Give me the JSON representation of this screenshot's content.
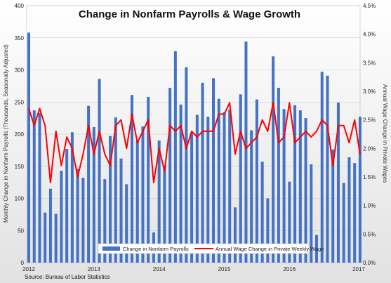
{
  "chart_data": {
    "type": "bar+line",
    "title": "Change in Nonfarm Payrolls & Wage Growth",
    "ylabel": "Monthly Change in Nonfarm Payrolls (Thousands, Seasonally Adjusted)",
    "y2label": "Annual Wage Change in Private Wages",
    "source": "Source: Bureau of Labor Statistics",
    "ylim": [
      0,
      400
    ],
    "y2lim": [
      0,
      4.5
    ],
    "y_ticks": [
      "0",
      "50",
      "100",
      "150",
      "200",
      "250",
      "300",
      "350",
      "400"
    ],
    "y2_ticks": [
      "0.0%",
      "0.5%",
      "1.0%",
      "1.5%",
      "2.0%",
      "2.5%",
      "3.0%",
      "3.5%",
      "4.0%",
      "4.5%"
    ],
    "x_ticks": [
      "2012",
      "2013",
      "2014",
      "2015",
      "2016",
      "2017"
    ],
    "grid": true,
    "legend": "bottom-center",
    "colors": {
      "bars": "#4472C4",
      "line": "#FF0000"
    },
    "series": [
      {
        "name": "Change in Nonfarm Payrolls",
        "type": "bar",
        "values": [
          358,
          237,
          233,
          78,
          115,
          76,
          143,
          177,
          203,
          146,
          132,
          244,
          211,
          286,
          130,
          197,
          226,
          162,
          122,
          261,
          190,
          212,
          258,
          47,
          190,
          151,
          272,
          329,
          246,
          304,
          202,
          230,
          280,
          227,
          287,
          255,
          234,
          238,
          86,
          262,
          344,
          206,
          254,
          157,
          100,
          321,
          272,
          239,
          126,
          245,
          237,
          225,
          153,
          43,
          297,
          291,
          176,
          249,
          124,
          164,
          155,
          227
        ],
        "x": [
          "2012-01",
          "2012-02",
          "2012-03",
          "2012-04",
          "2012-05",
          "2012-06",
          "2012-07",
          "2012-08",
          "2012-09",
          "2012-10",
          "2012-11",
          "2012-12",
          "2013-01",
          "2013-02",
          "2013-03",
          "2013-04",
          "2013-05",
          "2013-06",
          "2013-07",
          "2013-08",
          "2013-09",
          "2013-10",
          "2013-11",
          "2013-12",
          "2014-01",
          "2014-02",
          "2014-03",
          "2014-04",
          "2014-05",
          "2014-06",
          "2014-07",
          "2014-08",
          "2014-09",
          "2014-10",
          "2014-11",
          "2014-12",
          "2015-01",
          "2015-02",
          "2015-03",
          "2015-04",
          "2015-05",
          "2015-06",
          "2015-07",
          "2015-08",
          "2015-09",
          "2015-10",
          "2015-11",
          "2015-12",
          "2016-01",
          "2016-02",
          "2016-03",
          "2016-04",
          "2016-05",
          "2016-06",
          "2016-07",
          "2016-08",
          "2016-09",
          "2016-10",
          "2016-11",
          "2016-12",
          "2017-01",
          "2017-02"
        ]
      },
      {
        "name": "Annual Wage Change in Private Weekly Wage",
        "type": "line",
        "axis": "right",
        "values": [
          2.7,
          2.4,
          2.7,
          2.4,
          1.4,
          2.3,
          1.7,
          2.2,
          2.0,
          1.5,
          1.9,
          2.4,
          1.9,
          2.3,
          1.9,
          1.7,
          2.4,
          2.5,
          2.0,
          2.6,
          2.1,
          2.3,
          2.5,
          1.4,
          2.0,
          1.6,
          2.4,
          2.3,
          2.4,
          2.0,
          2.3,
          2.2,
          2.3,
          2.3,
          2.3,
          2.6,
          2.6,
          2.8,
          1.9,
          2.3,
          2.0,
          2.1,
          2.2,
          2.5,
          2.3,
          2.8,
          2.1,
          2.2,
          2.8,
          2.1,
          2.2,
          2.3,
          2.2,
          2.3,
          2.5,
          2.4,
          1.7,
          2.4,
          2.4,
          2.1,
          2.5,
          1.9
        ]
      }
    ]
  }
}
